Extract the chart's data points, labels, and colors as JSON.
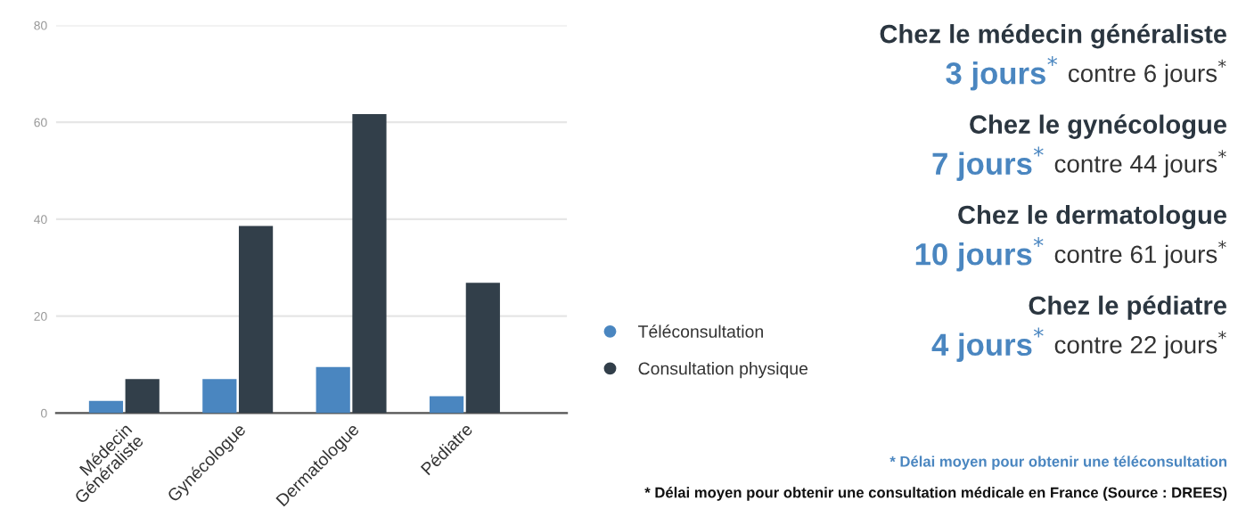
{
  "chart_data": {
    "type": "bar",
    "categories": [
      "Médecin\nGénéraliste",
      "Gynécologue",
      "Dermatologue",
      "Pédiatre"
    ],
    "series": [
      {
        "name": "Téléconsultation",
        "color": "#4a86c0",
        "values": [
          2.5,
          7.0,
          9.5,
          3.5
        ]
      },
      {
        "name": "Consultation physique",
        "color": "#323f4a",
        "values": [
          7.0,
          38.6,
          61.7,
          26.9
        ]
      }
    ],
    "ylim": [
      0,
      80
    ],
    "yticks": [
      0,
      20,
      40,
      60,
      80
    ],
    "grid": "y",
    "legend": "right",
    "annotations": [
      "Chez le médecin généraliste",
      "3 jours$^{*}$",
      " contre 6 jours$^{*}$",
      "Chez le gynécologue",
      "7 jours$^{*}$",
      " contre 44 jours$^{*}$",
      "Chez le dermatologue",
      "10 jours$^{*}$",
      " contre 61 jours$^{*}$",
      "Chez le pédiatre",
      "4 jours$^{*}$",
      " contre 22 jours$^{*}$",
      "* Délai moyen pour obtenir une téléconsultation",
      "* Délai moyen pour obtenir une consultation médicale en France (Source : DREES)"
    ]
  }
}
